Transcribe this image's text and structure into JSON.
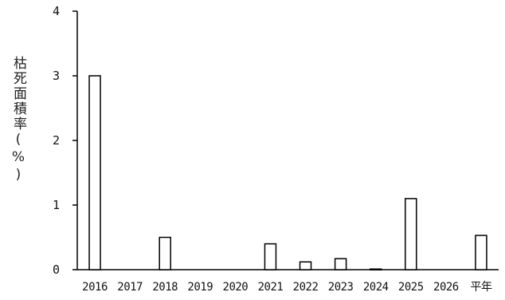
{
  "chart_data": {
    "type": "bar",
    "ylabel": "枯死面積率(%)",
    "xlabel": "",
    "ylim": [
      0,
      4
    ],
    "yticks": [
      "0",
      "1",
      "2",
      "3",
      "4"
    ],
    "grid": false,
    "categories": [
      "2016",
      "2017",
      "2018",
      "2019",
      "2020",
      "2021",
      "2022",
      "2023",
      "2024",
      "2025",
      "2026",
      "平年"
    ],
    "values": [
      3.0,
      0,
      0.5,
      0,
      0,
      0.4,
      0.12,
      0.17,
      0.01,
      1.1,
      0,
      0.53
    ],
    "bar_fill": "#ffffff",
    "bar_stroke": "#000000"
  }
}
